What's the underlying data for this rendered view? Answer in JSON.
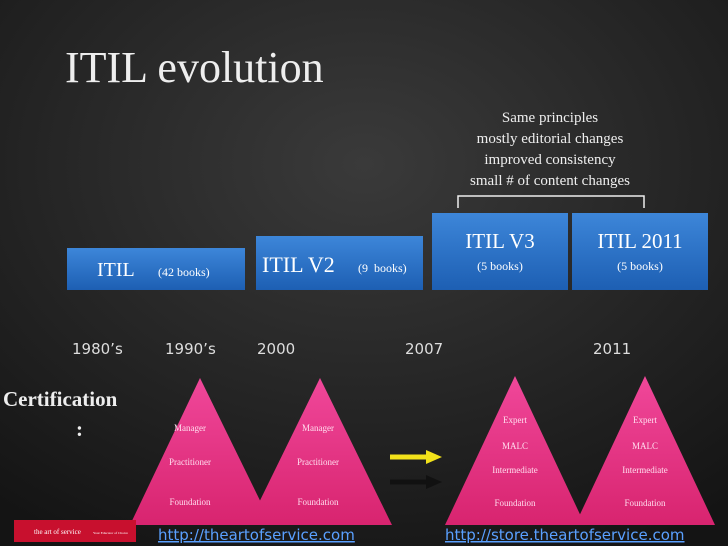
{
  "title": "ITIL evolution",
  "note": [
    "Same principles",
    "mostly editorial changes",
    "improved consistency",
    "small # of content changes"
  ],
  "boxes": [
    {
      "name": "ITIL",
      "detail": "(42 books)"
    },
    {
      "name": "ITIL V2",
      "detail": "(9  books)"
    },
    {
      "name": "ITIL V3",
      "detail": "(5 books)"
    },
    {
      "name": "ITIL 2011",
      "detail": "(5 books)"
    }
  ],
  "years": [
    "1980’s",
    "1990’s",
    "2000",
    "2007",
    "2011"
  ],
  "certification": {
    "label": "Certification",
    "colon": ":"
  },
  "pyramids": [
    {
      "levels": [
        "Manager",
        "Practitioner",
        "Foundation"
      ]
    },
    {
      "levels": [
        "Manager",
        "Practitioner",
        "Foundation"
      ]
    },
    {
      "levels": [
        "Expert",
        "MALC",
        "Intermediate",
        "Foundation"
      ]
    },
    {
      "levels": [
        "Expert",
        "MALC",
        "Intermediate",
        "Foundation"
      ]
    }
  ],
  "links": [
    "http://theartofservice.com",
    "http://store.theartofservice.com"
  ],
  "logo": {
    "name": "the art of service",
    "tagline": "Your Educator of Choice"
  }
}
